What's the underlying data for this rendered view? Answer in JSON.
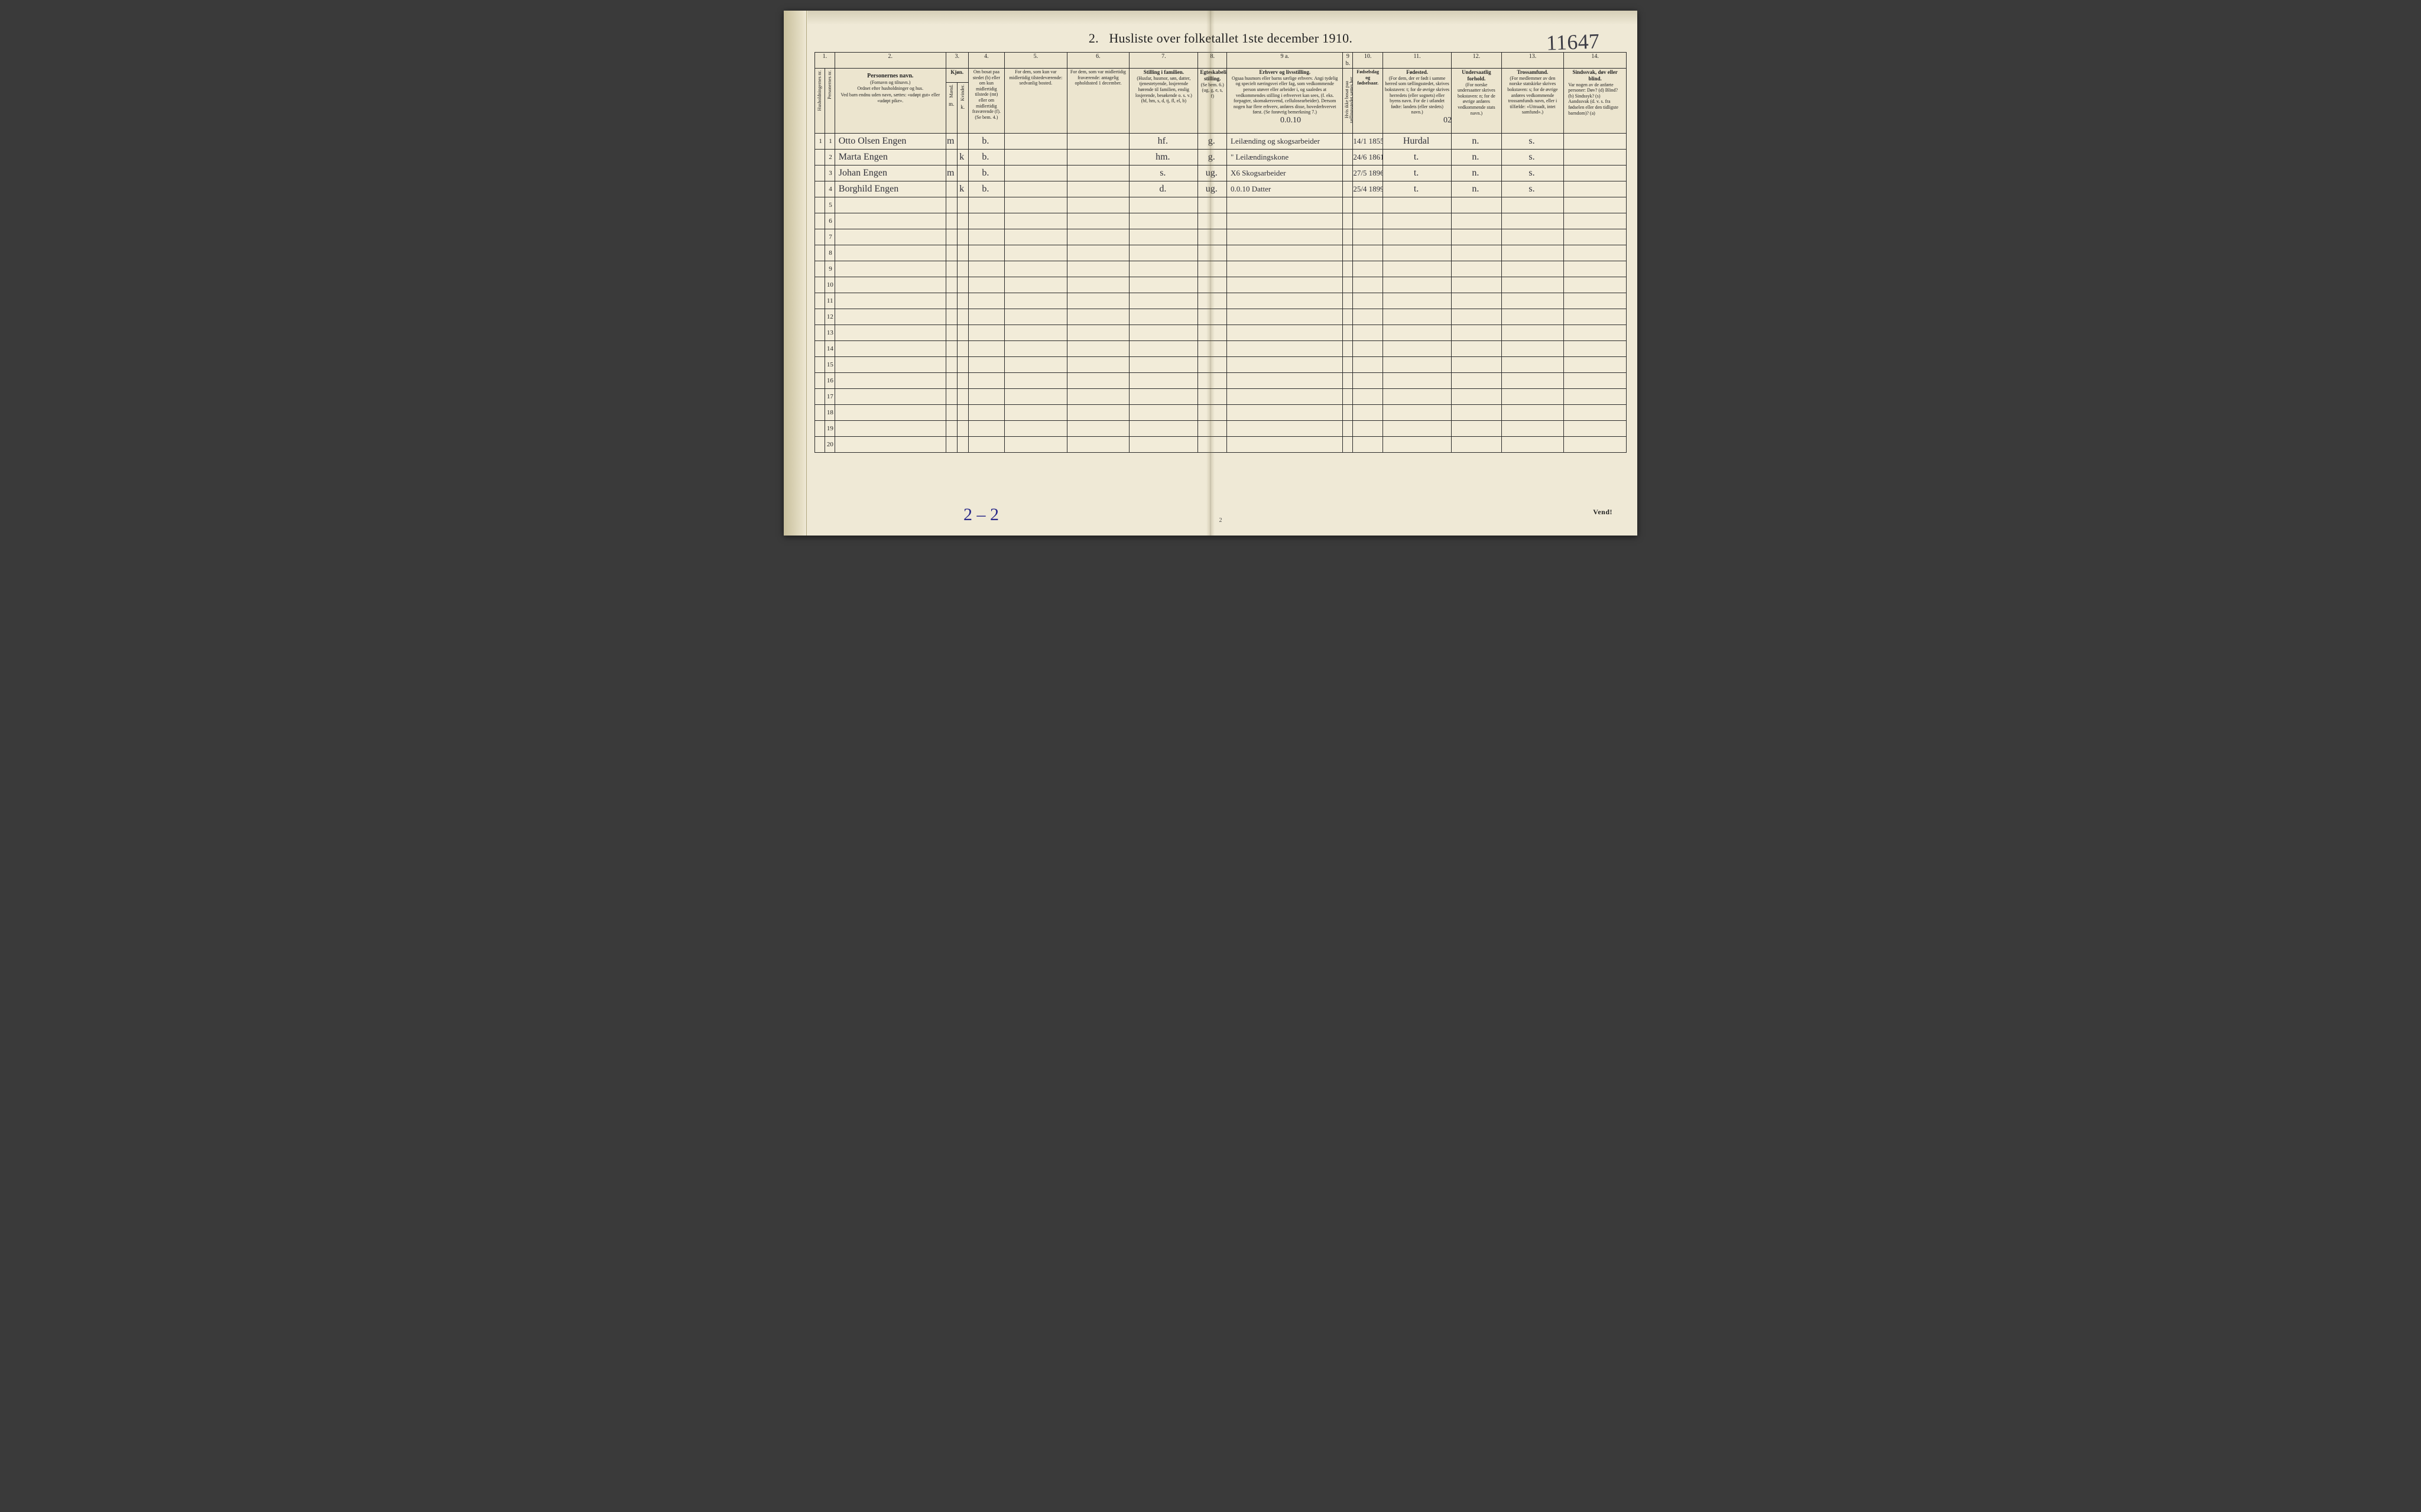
{
  "header": {
    "section_no": "2.",
    "title": "Husliste over folketallet 1ste december 1910.",
    "hand_page_no": "11647"
  },
  "columns": {
    "nums": [
      "1.",
      "2.",
      "3.",
      "4.",
      "5.",
      "6.",
      "7.",
      "8.",
      "9 a.",
      "9 b.",
      "10.",
      "11.",
      "12.",
      "13.",
      "14."
    ],
    "c1a": "Husholdningernes nr.",
    "c1b": "Personernes nr.",
    "c2_title": "Personernes navn.",
    "c2_sub1": "(Fornavn og tilnavn.)",
    "c2_sub2": "Ordnet efter husholdninger og hus.",
    "c2_sub3": "Ved barn endnu uden navn, sættes: «udøpt gut» eller «udøpt pike».",
    "c3_title": "Kjøn.",
    "c3_m": "m.",
    "c3_k": "k.",
    "c3_sub": "Mænd.  Kvinder.",
    "c4": "Om bosat paa stedet (b) eller om kun midlertidig tilstede (mt) eller om midlertidig fraværende (f). (Se bem. 4.)",
    "c5": "For dem, som kun var midlertidig tilstedeværende: sedvanlig bosted.",
    "c6": "For dem, som var midlertidig fraværende: antagelig opholdssted 1 december.",
    "c7_title": "Stilling i familien.",
    "c7_sub": "(Husfar, husmor, søn, datter, tjenestetyende, losjerende hørende til familien, enslig losjerende, besøkende o. s. v.) (hf, hm, s, d, tj, fl, el, b)",
    "c8_title": "Egteskabelig stilling.",
    "c8_sub": "(Se bem. 6.) (ug, g, e, s, f)",
    "c9a_title": "Erhverv og livsstilling.",
    "c9a_sub": "Ogsaa husmors eller barns særlige erhverv. Angi tydelig og specielt næringsvei eller fag, som vedkommende person utøver eller arbeider i, og saaledes at vedkommendes stilling i erhvervet kan sees, (f. eks. forpagter, skomakersvend, cellulosearbeider). Dersom nogen har flere erhverv, anføres disse, hovederhvervet først. (Se forøvrig bemerkning 7.)",
    "c9b": "Hvis ikke bosat paa tællingsstedet sættes her bokstaven t.",
    "c10_title": "Fødselsdag og fødselsaar.",
    "c11_title": "Fødested.",
    "c11_sub": "(For dem, der er født i samme herred som tællingsstedet, skrives bokstaven: t; for de øvrige skrives herredets (eller sognets) eller byens navn. For de i utlandet fødte: landets (eller stedets) navn.)",
    "c12_title": "Undersaatlig forhold.",
    "c12_sub": "(For norske undersaatter skrives bokstaven: n; for de øvrige anføres vedkommende stats navn.)",
    "c13_title": "Trossamfund.",
    "c13_sub": "(For medlemmer av den norske statskirke skrives bokstaven: s; for de øvrige anføres vedkommende trossamfunds navn, eller i tilfælde: «Uttraadt, intet samfund».)",
    "c14_title": "Sindssvak, døv eller blind.",
    "c14_sub": "Var nogen av de anførte personer: Døv? (d) Blind? (b) Sindssyk? (s) Aandssvak (d. v. s. fra fødselen eller den tidligste barndom)? (a)"
  },
  "overwrites": {
    "above_9a": "0.0.10",
    "above_11": "02"
  },
  "rows": [
    {
      "hnr": "1",
      "pnr": "1",
      "name": "Otto Olsen Engen",
      "m": "m",
      "k": "",
      "bosat": "b.",
      "c5": "",
      "c6": "",
      "stilling": "hf.",
      "egte": "g.",
      "erhverv": "Leilænding og skogsarbeider",
      "c9b": "",
      "fodsel": "14/1 1855",
      "fodested": "Hurdal",
      "unders": "n.",
      "tros": "s.",
      "c14": ""
    },
    {
      "hnr": "",
      "pnr": "2",
      "name": "Marta Engen",
      "m": "",
      "k": "k",
      "bosat": "b.",
      "c5": "",
      "c6": "",
      "stilling": "hm.",
      "egte": "g.",
      "erhverv": "\"  Leilændingskone",
      "c9b": "",
      "fodsel": "24/6 1861",
      "fodested": "t.",
      "unders": "n.",
      "tros": "s.",
      "c14": ""
    },
    {
      "hnr": "",
      "pnr": "3",
      "name": "Johan Engen",
      "m": "m",
      "k": "",
      "bosat": "b.",
      "c5": "",
      "c6": "",
      "stilling": "s.",
      "egte": "ug.",
      "erhverv": "X6 Skogsarbeider",
      "c9b": "",
      "fodsel": "27/5 1896",
      "fodested": "t.",
      "unders": "n.",
      "tros": "s.",
      "c14": ""
    },
    {
      "hnr": "",
      "pnr": "4",
      "name": "Borghild Engen",
      "m": "",
      "k": "k",
      "bosat": "b.",
      "c5": "",
      "c6": "",
      "stilling": "d.",
      "egte": "ug.",
      "erhverv": "0.0.10  Datter",
      "c9b": "",
      "fodsel": "25/4 1899",
      "fodested": "t.",
      "unders": "n.",
      "tros": "s.",
      "c14": ""
    }
  ],
  "empty_row_numbers": [
    "5",
    "6",
    "7",
    "8",
    "9",
    "10",
    "11",
    "12",
    "13",
    "14",
    "15",
    "16",
    "17",
    "18",
    "19",
    "20"
  ],
  "footer": {
    "center_pagenum": "2",
    "right": "Vend!",
    "bottom_hand": "2 – 2"
  },
  "style": {
    "paper_bg": "#efe9d6",
    "line_color": "#2a2a2a",
    "hand_color": "#2f2f38",
    "hand_blue": "#2a2a8a"
  }
}
